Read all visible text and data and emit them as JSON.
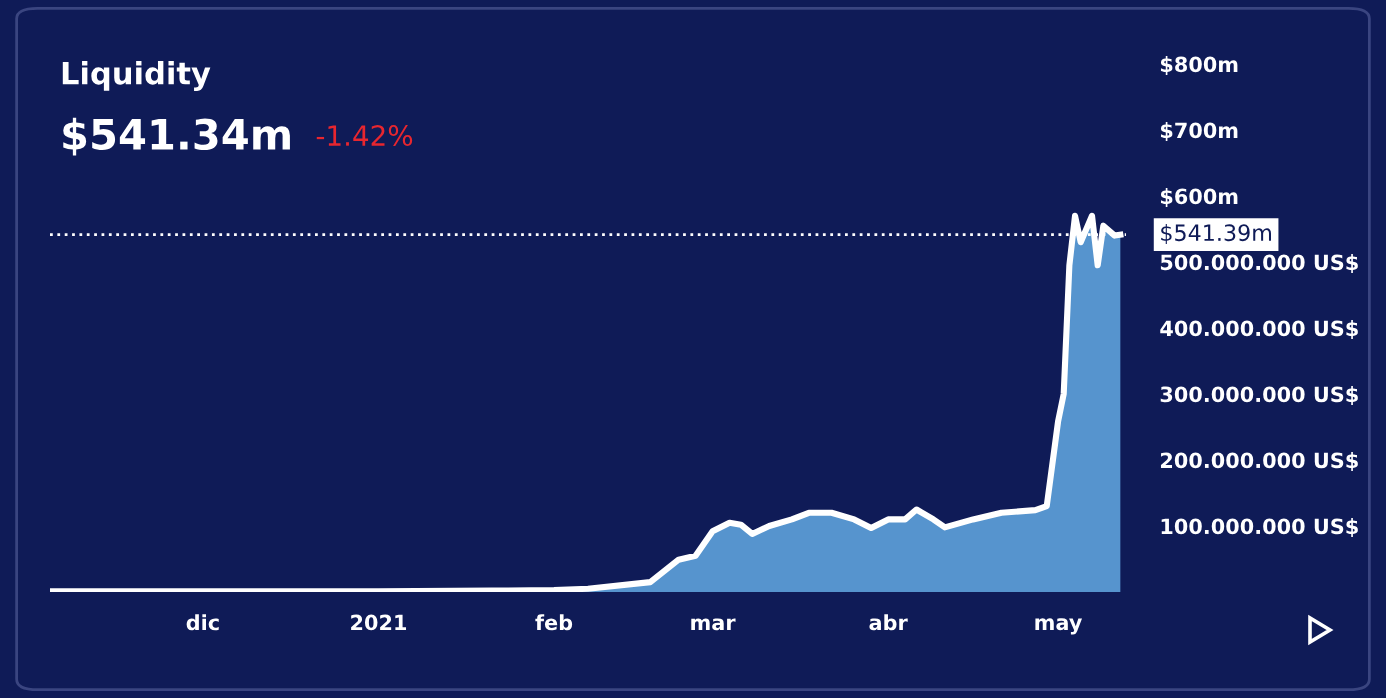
{
  "chart_data": {
    "type": "area",
    "title": "Liquidity",
    "subtitle": "$541.34m",
    "annotations": [
      "-1.42%"
    ],
    "x": [
      "2020-11-04",
      "2021-01-01",
      "2021-01-21",
      "2021-02-01",
      "2021-02-07",
      "2021-02-18",
      "2021-02-23",
      "2021-02-26",
      "2021-03-01",
      "2021-03-04",
      "2021-03-06",
      "2021-03-08",
      "2021-03-11",
      "2021-03-15",
      "2021-03-18",
      "2021-03-22",
      "2021-03-26",
      "2021-03-29",
      "2021-04-01",
      "2021-04-04",
      "2021-04-06",
      "2021-04-09",
      "2021-04-11",
      "2021-04-16",
      "2021-04-21",
      "2021-04-27",
      "2021-04-29",
      "2021-05-01",
      "2021-05-02",
      "2021-05-03",
      "2021-05-04",
      "2021-05-05",
      "2021-05-07",
      "2021-05-08",
      "2021-05-09",
      "2021-05-11",
      "2021-05-12"
    ],
    "series": [
      {
        "color": "#5b9bd5",
        "values": [
          1000000,
          1000000,
          2000000,
          3000000,
          5000000,
          15000000,
          49000000,
          55000000,
          92000000,
          105000000,
          102000000,
          88000000,
          100000000,
          110000000,
          120000000,
          120000000,
          110000000,
          97000000,
          110000000,
          110000000,
          125000000,
          110000000,
          98000000,
          110000000,
          120000000,
          124000000,
          130000000,
          258000000,
          300000000,
          495000000,
          570000000,
          530000000,
          570000000,
          495000000,
          555000000,
          540000000,
          541390000
        ]
      }
    ],
    "xlim": [
      "2020-11-04",
      "2021-05-13"
    ],
    "xticks": [
      {
        "value": "2020-12-01",
        "label": "dic"
      },
      {
        "value": "2021-01-01",
        "label": "2021"
      },
      {
        "value": "2021-02-01",
        "label": "feb"
      },
      {
        "value": "2021-03-01",
        "label": "mar"
      },
      {
        "value": "2021-04-01",
        "label": "abr"
      },
      {
        "value": "2021-05-01",
        "label": "may"
      }
    ],
    "ylim": [
      0,
      800000000
    ],
    "yticks": [
      {
        "value": 100000000,
        "label": "100.000.000 US$"
      },
      {
        "value": 200000000,
        "label": "200.000.000 US$"
      },
      {
        "value": 300000000,
        "label": "300.000.000 US$"
      },
      {
        "value": 400000000,
        "label": "400.000.000 US$"
      },
      {
        "value": 500000000,
        "label": "500.000.000 US$"
      },
      {
        "value": 600000000,
        "label": "$600m"
      },
      {
        "value": 700000000,
        "label": "$700m"
      },
      {
        "value": 800000000,
        "label": "$800m"
      }
    ],
    "ref_lines": [
      {
        "axis": "y",
        "value": 541390000,
        "label": "$541.39m",
        "color": "#ffffff",
        "line_style": "dotted"
      }
    ],
    "grid": false,
    "legend": false
  }
}
